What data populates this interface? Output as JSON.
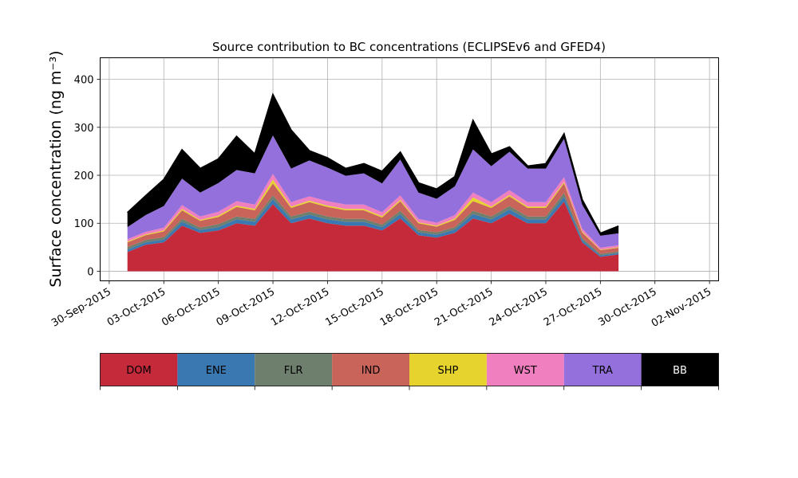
{
  "chart_data": {
    "type": "area",
    "stacked": true,
    "title": "Source contribution to BC concentrations (ECLIPSEv6 and GFED4)",
    "xlabel": "",
    "ylabel": "Surface concentration (ng m⁻³)",
    "x_start": "2015-10-01",
    "x_step_days": 1,
    "xlim": [
      "2015-09-29T12:00",
      "2015-11-02T12:00"
    ],
    "ylim": [
      -20,
      445
    ],
    "yticks": [
      0,
      100,
      200,
      300,
      400
    ],
    "xtick_labels": [
      "30-Sep-2015",
      "03-Oct-2015",
      "06-Oct-2015",
      "09-Oct-2015",
      "12-Oct-2015",
      "15-Oct-2015",
      "18-Oct-2015",
      "21-Oct-2015",
      "24-Oct-2015",
      "27-Oct-2015",
      "30-Oct-2015",
      "02-Nov-2015"
    ],
    "xtick_dates": [
      "2015-09-30",
      "2015-10-03",
      "2015-10-06",
      "2015-10-09",
      "2015-10-12",
      "2015-10-15",
      "2015-10-18",
      "2015-10-21",
      "2015-10-24",
      "2015-10-27",
      "2015-10-30",
      "2015-11-02"
    ],
    "grid": true,
    "legend_position": "bottom",
    "series": [
      {
        "name": "DOM",
        "color": "#c52a3a",
        "values": [
          40,
          55,
          60,
          95,
          80,
          85,
          100,
          95,
          140,
          100,
          110,
          100,
          95,
          95,
          85,
          110,
          75,
          70,
          80,
          110,
          100,
          120,
          100,
          100,
          145,
          60,
          30,
          35
        ]
      },
      {
        "name": "ENE",
        "color": "#3a78b1",
        "values": [
          5,
          5,
          6,
          8,
          6,
          7,
          8,
          8,
          10,
          8,
          8,
          8,
          8,
          8,
          7,
          9,
          6,
          6,
          7,
          9,
          8,
          9,
          8,
          8,
          10,
          5,
          3,
          3
        ]
      },
      {
        "name": "FLR",
        "color": "#6e7f6e",
        "values": [
          5,
          5,
          5,
          6,
          5,
          6,
          6,
          6,
          8,
          6,
          6,
          6,
          6,
          6,
          5,
          7,
          5,
          5,
          5,
          7,
          6,
          7,
          6,
          6,
          8,
          4,
          3,
          3
        ]
      },
      {
        "name": "IND",
        "color": "#c8645a",
        "values": [
          10,
          10,
          12,
          18,
          14,
          15,
          20,
          18,
          25,
          18,
          20,
          20,
          18,
          18,
          15,
          20,
          14,
          12,
          15,
          20,
          18,
          20,
          18,
          18,
          20,
          12,
          8,
          8
        ]
      },
      {
        "name": "SHP",
        "color": "#e6d32e",
        "values": [
          2,
          2,
          2,
          3,
          2,
          3,
          3,
          3,
          8,
          3,
          3,
          3,
          3,
          3,
          3,
          3,
          2,
          2,
          3,
          8,
          3,
          3,
          3,
          3,
          3,
          2,
          1,
          1
        ]
      },
      {
        "name": "WST",
        "color": "#f07fc0",
        "values": [
          5,
          5,
          6,
          8,
          7,
          8,
          9,
          9,
          12,
          9,
          9,
          9,
          9,
          9,
          8,
          9,
          7,
          6,
          7,
          10,
          9,
          10,
          9,
          9,
          10,
          6,
          4,
          4
        ]
      },
      {
        "name": "TRA",
        "color": "#9470dc",
        "values": [
          25,
          35,
          45,
          55,
          50,
          60,
          65,
          65,
          80,
          70,
          75,
          70,
          60,
          65,
          60,
          75,
          55,
          50,
          60,
          90,
          75,
          80,
          70,
          70,
          80,
          50,
          25,
          25
        ]
      },
      {
        "name": "BB",
        "color": "#000000",
        "values": [
          30,
          40,
          55,
          60,
          50,
          50,
          70,
          40,
          85,
          80,
          20,
          20,
          15,
          20,
          25,
          15,
          20,
          20,
          20,
          60,
          25,
          10,
          5,
          10,
          10,
          10,
          5,
          15
        ]
      }
    ],
    "legend_entries": [
      "DOM",
      "ENE",
      "FLR",
      "IND",
      "SHP",
      "WST",
      "TRA",
      "BB"
    ]
  }
}
